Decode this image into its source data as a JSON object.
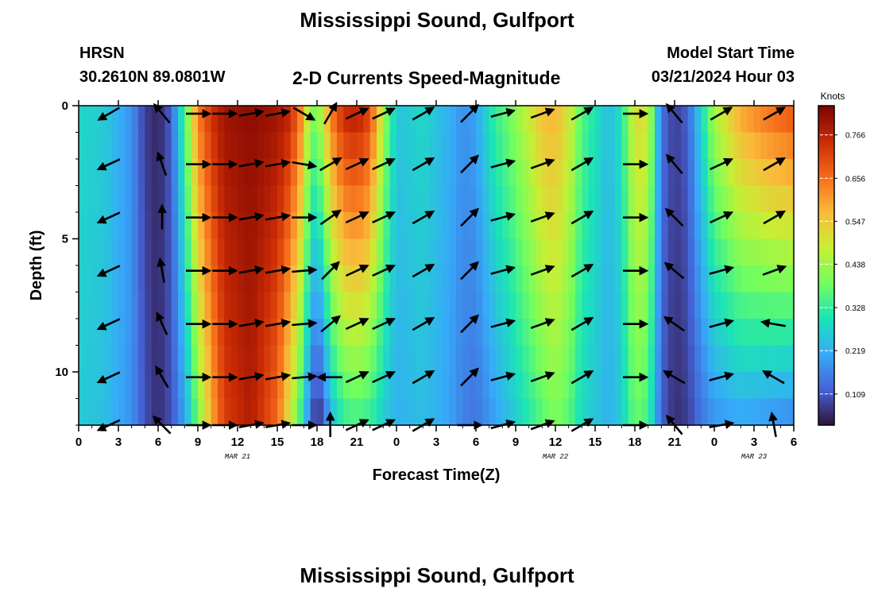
{
  "header": {
    "title": "Mississippi Sound, Gulfport",
    "station": "HRSN",
    "coordinates": "30.2610N  89.0801W",
    "subtitle": "2-D Currents Speed-Magnitude",
    "model_start_label": "Model Start Time",
    "model_start_value": "03/21/2024 Hour 03"
  },
  "footer": {
    "title": "Mississippi Sound, Gulfport"
  },
  "chart_data": {
    "type": "heatmap",
    "xlabel": "Forecast Time(Z)",
    "ylabel": "Depth (ft)",
    "x_tick_labels": [
      "0",
      "3",
      "6",
      "9",
      "12",
      "15",
      "18",
      "21",
      "0",
      "3",
      "6",
      "9",
      "12",
      "15",
      "18",
      "21",
      "0",
      "3",
      "6"
    ],
    "xlim_hours": [
      0,
      54
    ],
    "x_ticks_hours": [
      0,
      3,
      6,
      9,
      12,
      15,
      18,
      21,
      24,
      27,
      30,
      33,
      36,
      39,
      42,
      45,
      48,
      51,
      54
    ],
    "date_labels": [
      {
        "text": "MAR 21",
        "hour": 12
      },
      {
        "text": "MAR 22",
        "hour": 36
      },
      {
        "text": "MAR 23",
        "hour": 51
      }
    ],
    "y_tick_labels": [
      "0",
      "5",
      "10"
    ],
    "y_ticks": [
      0,
      5,
      10
    ],
    "ylim": [
      0,
      12
    ],
    "y_inverted": true,
    "colorbar": {
      "label": "Knots",
      "ticks": [
        "0.109",
        "0.219",
        "0.328",
        "0.438",
        "0.547",
        "0.656",
        "0.766"
      ],
      "range": [
        0.03,
        0.84
      ],
      "colors": [
        "#30123b",
        "#4662d7",
        "#36aaf9",
        "#1ae4b6",
        "#72fe5e",
        "#c7ef34",
        "#faba39",
        "#f66b19",
        "#ca2a04",
        "#7a0403"
      ]
    },
    "speed_profile": {
      "time_knots": [
        0,
        2,
        4,
        5,
        6,
        7,
        8,
        9,
        10,
        11,
        13,
        15,
        16,
        17,
        17.5,
        18,
        18.5,
        19,
        20,
        21,
        22,
        23,
        24,
        26,
        28,
        29,
        30,
        31,
        33,
        35,
        36,
        37,
        38,
        40,
        41,
        42,
        43,
        44,
        45,
        46,
        47,
        48,
        50,
        52,
        54
      ],
      "surface": [
        0.28,
        0.26,
        0.18,
        0.08,
        0.05,
        0.12,
        0.35,
        0.64,
        0.74,
        0.8,
        0.82,
        0.8,
        0.76,
        0.6,
        0.4,
        0.42,
        0.5,
        0.64,
        0.76,
        0.78,
        0.72,
        0.45,
        0.25,
        0.28,
        0.22,
        0.18,
        0.2,
        0.3,
        0.42,
        0.56,
        0.58,
        0.5,
        0.36,
        0.24,
        0.3,
        0.52,
        0.5,
        0.14,
        0.08,
        0.12,
        0.28,
        0.45,
        0.6,
        0.66,
        0.7
      ],
      "bottom": [
        0.26,
        0.24,
        0.18,
        0.1,
        0.06,
        0.1,
        0.2,
        0.38,
        0.58,
        0.72,
        0.78,
        0.66,
        0.48,
        0.28,
        0.12,
        0.05,
        0.1,
        0.22,
        0.32,
        0.34,
        0.32,
        0.26,
        0.22,
        0.24,
        0.2,
        0.16,
        0.14,
        0.18,
        0.26,
        0.36,
        0.4,
        0.36,
        0.28,
        0.22,
        0.26,
        0.38,
        0.34,
        0.12,
        0.06,
        0.08,
        0.14,
        0.18,
        0.2,
        0.18,
        0.16
      ]
    },
    "vector_depths_ft": [
      0.3,
      2.2,
      4.2,
      6.2,
      8.2,
      10.2,
      12
    ],
    "vector_columns": [
      {
        "hour": 2.3,
        "angles_deg": [
          210,
          205,
          205,
          205,
          205,
          205,
          205
        ]
      },
      {
        "hour": 6.3,
        "angles_deg": [
          130,
          110,
          90,
          100,
          115,
          120,
          135
        ]
      },
      {
        "hour": 9.0,
        "angles_deg": [
          0,
          0,
          0,
          0,
          0,
          0,
          0
        ]
      },
      {
        "hour": 11.0,
        "angles_deg": [
          0,
          0,
          0,
          0,
          0,
          0,
          0
        ]
      },
      {
        "hour": 13.0,
        "angles_deg": [
          10,
          10,
          10,
          10,
          10,
          10,
          10
        ]
      },
      {
        "hour": 15.0,
        "angles_deg": [
          10,
          10,
          10,
          10,
          10,
          10,
          10
        ]
      },
      {
        "hour": 17.0,
        "angles_deg": [
          330,
          350,
          0,
          5,
          5,
          5,
          0
        ]
      },
      {
        "hour": 19.0,
        "angles_deg": [
          60,
          30,
          35,
          45,
          40,
          180,
          90
        ]
      },
      {
        "hour": 21.0,
        "angles_deg": [
          25,
          25,
          25,
          25,
          25,
          25,
          25
        ]
      },
      {
        "hour": 23.0,
        "angles_deg": [
          25,
          25,
          25,
          25,
          25,
          25,
          25
        ]
      },
      {
        "hour": 26.0,
        "angles_deg": [
          30,
          30,
          30,
          30,
          30,
          30,
          30
        ]
      },
      {
        "hour": 29.5,
        "angles_deg": [
          45,
          45,
          45,
          45,
          45,
          45,
          0
        ]
      },
      {
        "hour": 32.0,
        "angles_deg": [
          15,
          15,
          15,
          15,
          15,
          15,
          15
        ]
      },
      {
        "hour": 35.0,
        "angles_deg": [
          20,
          20,
          20,
          20,
          20,
          20,
          20
        ]
      },
      {
        "hour": 38.0,
        "angles_deg": [
          30,
          30,
          30,
          30,
          30,
          30,
          30
        ]
      },
      {
        "hour": 42.0,
        "angles_deg": [
          0,
          0,
          0,
          0,
          0,
          0,
          0
        ]
      },
      {
        "hour": 45.0,
        "angles_deg": [
          130,
          130,
          135,
          140,
          145,
          150,
          130
        ]
      },
      {
        "hour": 48.5,
        "angles_deg": [
          30,
          25,
          25,
          15,
          15,
          15,
          10
        ]
      },
      {
        "hour": 52.5,
        "angles_deg": [
          30,
          30,
          30,
          20,
          170,
          150,
          100
        ]
      }
    ]
  }
}
